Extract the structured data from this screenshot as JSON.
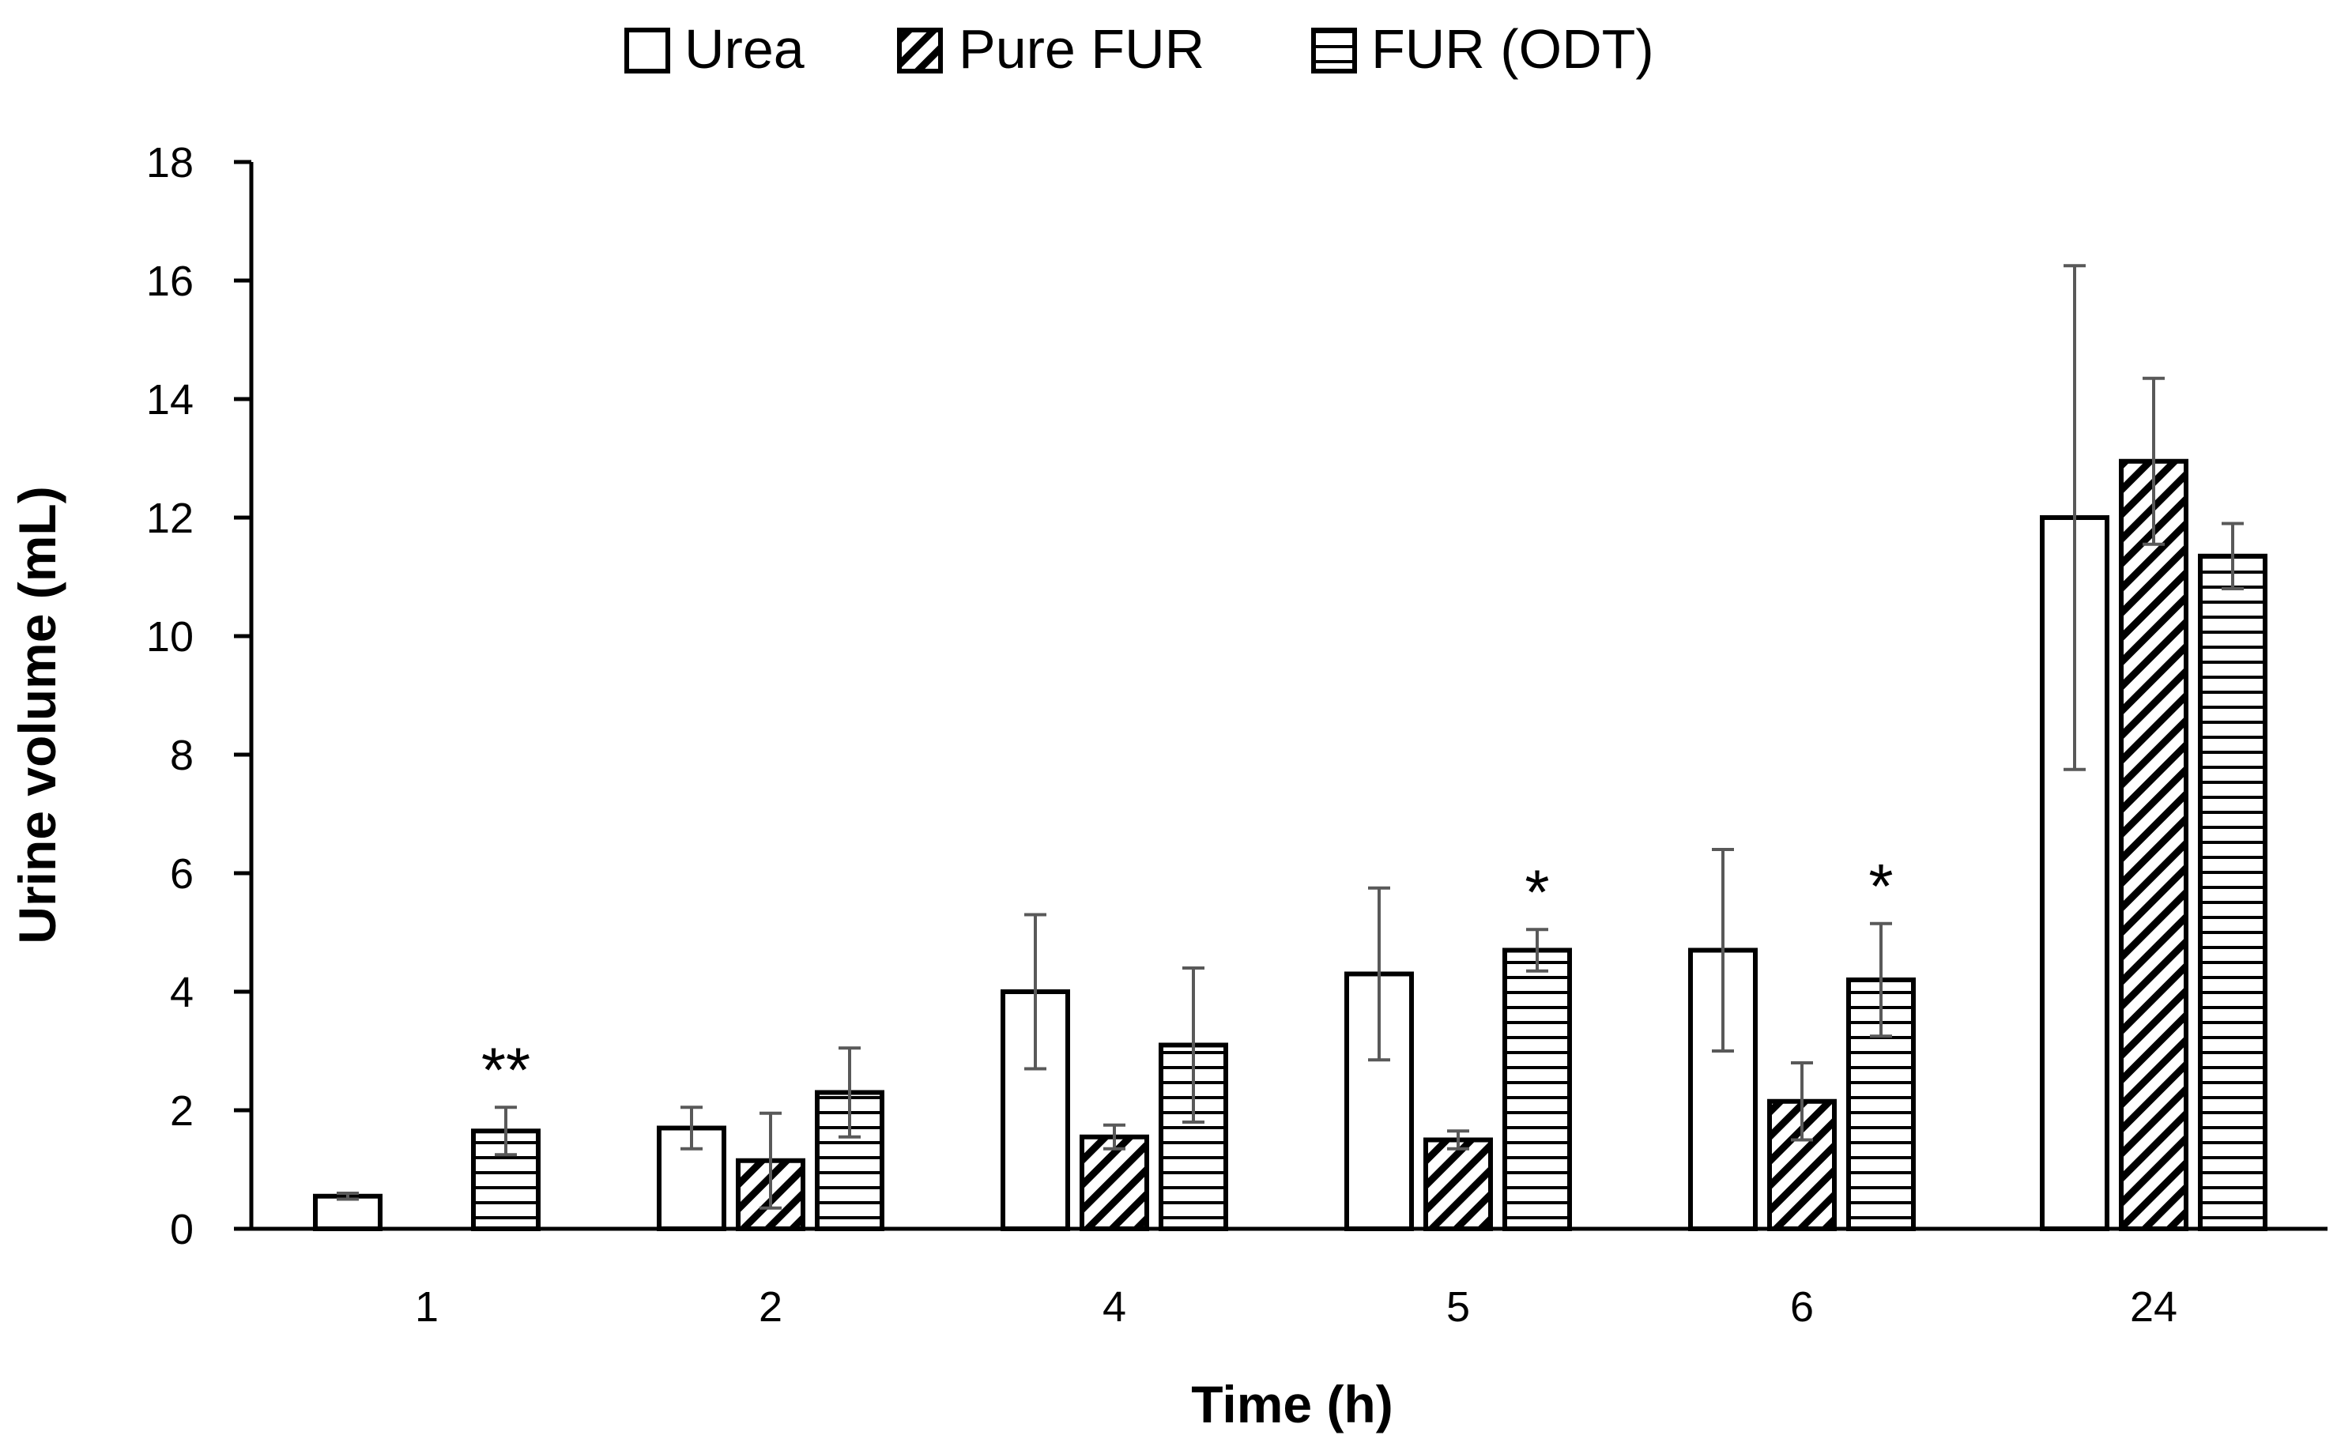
{
  "chart_data": {
    "type": "bar",
    "xlabel": "Time (h)",
    "ylabel": "Urine volume (mL)",
    "ylim": [
      0,
      18
    ],
    "yticks": [
      0,
      2,
      4,
      6,
      8,
      10,
      12,
      14,
      16,
      18
    ],
    "categories": [
      "1",
      "2",
      "4",
      "5",
      "6",
      "24"
    ],
    "legend_position": "top-center",
    "series": [
      {
        "name": "Urea",
        "pattern": "solid-white",
        "values": [
          0.55,
          1.7,
          4.0,
          4.3,
          4.7,
          12.0
        ],
        "errors": [
          0.05,
          0.35,
          1.3,
          1.45,
          1.7,
          4.25
        ]
      },
      {
        "name": "Pure FUR",
        "pattern": "diagonal-hatch",
        "values": [
          null,
          1.15,
          1.55,
          1.5,
          2.15,
          12.95
        ],
        "errors": [
          null,
          0.8,
          0.2,
          0.15,
          0.65,
          1.4
        ]
      },
      {
        "name": "FUR (ODT)",
        "pattern": "horizontal-lines",
        "values": [
          1.65,
          2.3,
          3.1,
          4.7,
          4.2,
          11.35
        ],
        "errors": [
          0.4,
          0.75,
          1.3,
          0.35,
          0.95,
          0.55
        ]
      }
    ],
    "annotations": [
      {
        "text": "**",
        "category": "1",
        "series": "FUR (ODT)"
      },
      {
        "text": "*",
        "category": "5",
        "series": "FUR (ODT)"
      },
      {
        "text": "*",
        "category": "6",
        "series": "FUR (ODT)"
      }
    ],
    "colors": {
      "bar_stroke": "#000000",
      "bar_fill": "#ffffff",
      "errorbar": "#595959",
      "axis": "#000000"
    }
  }
}
